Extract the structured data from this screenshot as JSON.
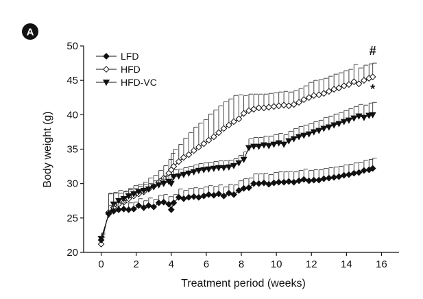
{
  "panel_label": "A",
  "chart_data": {
    "type": "line",
    "title": "",
    "xlabel": "Treatment period (weeks)",
    "ylabel": "Body weight (g)",
    "xlim": [
      -1,
      17
    ],
    "ylim": [
      20,
      50
    ],
    "xticks": [
      0,
      2,
      4,
      6,
      8,
      10,
      12,
      14,
      16
    ],
    "yticks": [
      20,
      25,
      30,
      35,
      40,
      45,
      50
    ],
    "legend_position": "top-left",
    "grid": false,
    "annotations": [
      {
        "text": "#",
        "series": "HFD"
      },
      {
        "text": "*",
        "series": "HFD-VC"
      }
    ],
    "x": [
      0,
      0.43,
      0.71,
      1.0,
      1.29,
      1.57,
      1.86,
      2.14,
      2.43,
      2.71,
      3.0,
      3.29,
      3.57,
      3.86,
      4.0,
      4.14,
      4.43,
      4.71,
      5.0,
      5.29,
      5.57,
      5.86,
      6.14,
      6.43,
      6.71,
      7.0,
      7.29,
      7.57,
      7.86,
      8.14,
      8.43,
      8.71,
      9.0,
      9.29,
      9.57,
      9.86,
      10.14,
      10.43,
      10.71,
      11.0,
      11.29,
      11.57,
      11.86,
      12.14,
      12.43,
      12.71,
      13.0,
      13.29,
      13.57,
      13.86,
      14.14,
      14.43,
      14.71,
      15.0,
      15.29,
      15.5
    ],
    "series": [
      {
        "name": "LFD",
        "marker": "diamond-filled",
        "color": "#000000",
        "values": [
          21.8,
          25.6,
          26.0,
          26.2,
          26.3,
          26.2,
          26.3,
          26.8,
          26.5,
          26.8,
          26.6,
          27.2,
          27.3,
          27.0,
          26.2,
          27.2,
          28.0,
          27.8,
          28.0,
          28.1,
          28.0,
          28.2,
          28.4,
          28.3,
          28.5,
          28.2,
          28.6,
          28.4,
          29.0,
          29.3,
          29.4,
          30.0,
          30.0,
          30.1,
          29.9,
          30.1,
          30.2,
          30.2,
          30.3,
          30.2,
          30.4,
          30.6,
          30.4,
          30.5,
          30.5,
          30.7,
          30.8,
          30.9,
          31.0,
          31.2,
          31.3,
          31.5,
          31.6,
          31.9,
          32.0,
          32.2
        ],
        "errors": [
          0.8,
          1.2,
          1.0,
          1.0,
          0.9,
          1.0,
          1.0,
          1.0,
          1.0,
          1.1,
          1.1,
          1.1,
          1.1,
          1.1,
          1.1,
          1.2,
          1.2,
          1.2,
          1.3,
          1.3,
          1.3,
          1.3,
          1.3,
          1.3,
          1.3,
          1.3,
          1.3,
          1.4,
          1.4,
          1.4,
          1.4,
          1.4,
          1.4,
          1.4,
          1.4,
          1.5,
          1.5,
          1.5,
          1.5,
          1.5,
          1.5,
          1.5,
          1.5,
          1.5,
          1.5,
          1.5,
          1.5,
          1.5,
          1.5,
          1.5,
          1.5,
          1.5,
          1.5,
          1.5,
          1.5,
          1.5
        ]
      },
      {
        "name": "HFD",
        "marker": "diamond-open",
        "color": "#000000",
        "values": [
          21.2,
          25.8,
          26.5,
          27.0,
          27.3,
          27.8,
          28.2,
          28.5,
          28.8,
          29.2,
          29.6,
          30.2,
          30.8,
          31.5,
          32.0,
          32.5,
          33.2,
          33.8,
          34.2,
          34.8,
          35.3,
          35.8,
          36.3,
          36.8,
          37.4,
          38.0,
          38.5,
          39.0,
          39.4,
          40.2,
          40.6,
          40.8,
          41.0,
          41.0,
          41.1,
          41.2,
          41.3,
          41.4,
          41.3,
          41.5,
          41.8,
          42.2,
          42.5,
          42.8,
          42.9,
          43.1,
          43.4,
          43.7,
          43.9,
          44.2,
          44.4,
          44.8,
          44.5,
          45.0,
          45.3,
          45.5
        ],
        "errors": [
          1.0,
          2.8,
          2.2,
          2.0,
          1.6,
          1.5,
          1.5,
          1.4,
          1.4,
          1.6,
          1.6,
          1.7,
          1.8,
          2.0,
          2.4,
          2.5,
          2.5,
          2.8,
          3.2,
          3.4,
          3.5,
          3.5,
          3.8,
          3.9,
          3.9,
          3.9,
          3.8,
          3.8,
          3.5,
          2.6,
          2.4,
          2.2,
          2.0,
          2.0,
          2.0,
          2.0,
          2.0,
          2.0,
          2.0,
          2.0,
          2.0,
          2.0,
          2.2,
          2.2,
          2.2,
          2.2,
          2.2,
          2.2,
          2.2,
          2.2,
          2.2,
          2.5,
          2.3,
          2.2,
          2.1,
          2.0
        ]
      },
      {
        "name": "HFD-VC",
        "marker": "triangle-down-filled",
        "color": "#000000",
        "values": [
          22.0,
          25.5,
          27.0,
          27.5,
          27.8,
          28.2,
          28.5,
          28.8,
          29.0,
          29.2,
          29.5,
          29.8,
          30.0,
          30.3,
          30.0,
          31.0,
          31.1,
          31.3,
          31.5,
          31.7,
          31.9,
          32.0,
          32.1,
          32.2,
          32.3,
          32.3,
          32.4,
          32.6,
          33.0,
          33.5,
          35.2,
          35.4,
          35.4,
          35.6,
          35.5,
          35.7,
          35.9,
          35.7,
          36.2,
          36.5,
          36.8,
          37.0,
          37.2,
          37.5,
          37.7,
          38.0,
          38.2,
          38.5,
          38.7,
          39.0,
          39.2,
          39.5,
          39.8,
          39.6,
          39.9,
          40.0
        ],
        "errors": [
          0.8,
          3.0,
          1.6,
          1.1,
          1.0,
          0.9,
          0.8,
          0.8,
          0.9,
          0.8,
          0.9,
          0.9,
          1.0,
          1.0,
          1.0,
          1.0,
          1.0,
          1.0,
          1.0,
          1.0,
          1.0,
          1.0,
          1.0,
          1.0,
          1.0,
          1.0,
          1.0,
          1.0,
          1.1,
          1.1,
          1.3,
          1.3,
          1.3,
          1.3,
          1.4,
          1.4,
          1.4,
          1.4,
          1.4,
          1.5,
          1.5,
          1.5,
          1.5,
          1.5,
          1.5,
          1.6,
          1.6,
          1.6,
          1.6,
          1.6,
          1.7,
          1.7,
          1.7,
          1.8,
          1.8,
          1.8
        ]
      }
    ]
  }
}
